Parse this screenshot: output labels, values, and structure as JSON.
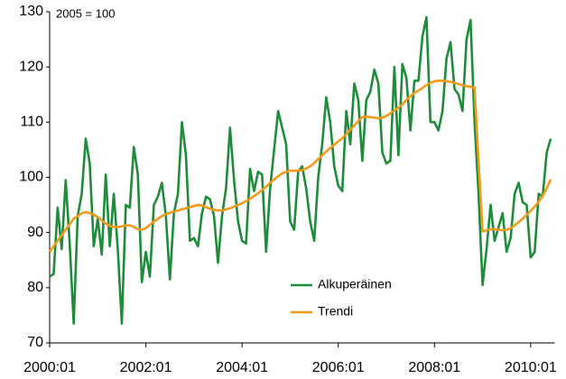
{
  "chart_data": {
    "type": "line",
    "annotation": "2005 = 100",
    "categories": [
      "2000:01",
      null,
      null,
      null,
      null,
      null,
      null,
      null,
      null,
      null,
      null,
      null,
      null,
      null,
      null,
      null,
      null,
      null,
      null,
      null,
      null,
      null,
      null,
      null,
      "2002:01",
      null,
      null,
      null,
      null,
      null,
      null,
      null,
      null,
      null,
      null,
      null,
      null,
      null,
      null,
      null,
      null,
      null,
      null,
      null,
      null,
      null,
      null,
      null,
      "2004:01",
      null,
      null,
      null,
      null,
      null,
      null,
      null,
      null,
      null,
      null,
      null,
      null,
      null,
      null,
      null,
      null,
      null,
      null,
      null,
      null,
      null,
      null,
      null,
      "2006:01",
      null,
      null,
      null,
      null,
      null,
      null,
      null,
      null,
      null,
      null,
      null,
      null,
      null,
      null,
      null,
      null,
      null,
      null,
      null,
      null,
      null,
      null,
      null,
      "2008:01",
      null,
      null,
      null,
      null,
      null,
      null,
      null,
      null,
      null,
      null,
      null,
      null,
      null,
      null,
      null,
      null,
      null,
      null,
      null,
      null,
      null,
      null,
      null,
      "2010:01",
      null,
      null,
      null,
      null,
      null
    ],
    "series": [
      {
        "name": "Alkuperäinen",
        "color": "#1e8c3a",
        "values": [
          82,
          82.5,
          94.5,
          87,
          99.5,
          88,
          73.5,
          93,
          97,
          107,
          102.5,
          87.5,
          92.5,
          86,
          100.5,
          87.5,
          97,
          87,
          73.5,
          95,
          94.5,
          105.5,
          100.5,
          81,
          86.5,
          82,
          95,
          96.5,
          99,
          93,
          81.5,
          93.5,
          97,
          110,
          104,
          88.5,
          89,
          87.5,
          93.5,
          96.5,
          96,
          93,
          84.5,
          93,
          98,
          109,
          99.5,
          92,
          88.5,
          88,
          101.5,
          97.5,
          101,
          100.5,
          86.5,
          98,
          105,
          112,
          109,
          106,
          92,
          90.5,
          101,
          102,
          98,
          92,
          88.5,
          100,
          106,
          114.5,
          110,
          102,
          98.5,
          97.5,
          112,
          106,
          117,
          114,
          103,
          114,
          115.5,
          119.5,
          117,
          104.5,
          102.5,
          103,
          120,
          104,
          120.5,
          118,
          108.5,
          117.5,
          117.5,
          125.5,
          129,
          110,
          110,
          108.5,
          112,
          121.5,
          124.5,
          116,
          115,
          112,
          125,
          128.5,
          110,
          97,
          80.5,
          87,
          95,
          88.5,
          91,
          93.5,
          86.5,
          89,
          97,
          99,
          95.5,
          95,
          85.5,
          86.5,
          97,
          96.5,
          104.5,
          107
        ]
      },
      {
        "name": "Trendi",
        "color": "#f39a1b",
        "values": [
          86.5,
          87.5,
          88.5,
          89.5,
          90.5,
          91.5,
          92.5,
          93,
          93.5,
          93.7,
          93.5,
          93.2,
          92.8,
          92.2,
          91.6,
          91.2,
          91,
          91,
          91.1,
          91.3,
          91.3,
          91,
          90.6,
          90.5,
          90.8,
          91.4,
          92,
          92.5,
          93,
          93.3,
          93.6,
          93.8,
          94,
          94.2,
          94.4,
          94.6,
          94.8,
          95,
          94.9,
          94.6,
          94.3,
          94.1,
          94,
          94,
          94.2,
          94.4,
          94.7,
          95,
          95.3,
          95.7,
          96.1,
          96.6,
          97.1,
          97.7,
          98.3,
          99,
          99.6,
          100.2,
          100.7,
          101,
          101.2,
          101.2,
          101.2,
          101.3,
          101.6,
          102,
          102.6,
          103.3,
          104,
          104.7,
          105.3,
          105.9,
          106.5,
          107.1,
          107.8,
          108.6,
          109.4,
          110.2,
          110.9,
          111,
          110.9,
          110.8,
          110.7,
          110.8,
          111.1,
          111.6,
          112.1,
          112.6,
          113.2,
          114,
          114.7,
          115.3,
          115.7,
          116.2,
          116.7,
          117.1,
          117.4,
          117.5,
          117.5,
          117.4,
          117.3,
          117.1,
          116.9,
          116.7,
          116.5,
          116.4,
          116.2,
          103,
          90.2,
          90.4,
          90.6,
          90.6,
          90.5,
          90.4,
          90.5,
          90.8,
          91.3,
          91.9,
          92.5,
          93.2,
          93.9,
          94.7,
          95.6,
          96.6,
          98,
          99.6
        ]
      }
    ],
    "ylim": [
      70,
      130
    ],
    "yticks": [
      70,
      80,
      90,
      100,
      110,
      120,
      130
    ],
    "grid": false,
    "legend": "bottom-center"
  }
}
